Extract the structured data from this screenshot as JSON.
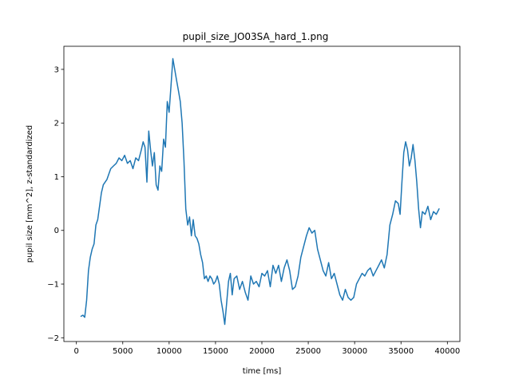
{
  "chart_data": {
    "type": "line",
    "title": "pupil_size_JO03SA_hard_1.png",
    "xlabel": "time [ms]",
    "ylabel": "pupil size [mm^2], z-standardized",
    "xlim": [
      -1350,
      41350
    ],
    "ylim": [
      -2.07,
      3.43
    ],
    "xticks": [
      0,
      5000,
      10000,
      15000,
      20000,
      25000,
      30000,
      35000,
      40000
    ],
    "xtick_labels": [
      "0",
      "5000",
      "10000",
      "15000",
      "20000",
      "25000",
      "30000",
      "35000",
      "40000"
    ],
    "yticks": [
      -2,
      -1,
      0,
      1,
      2,
      3
    ],
    "ytick_labels": [
      "−2",
      "−1",
      "0",
      "1",
      "2",
      "3"
    ],
    "grid": false,
    "series": [
      {
        "color": "#1f77b4",
        "x": [
          500,
          700,
          900,
          1100,
          1300,
          1500,
          1700,
          1900,
          2100,
          2300,
          2500,
          2700,
          2900,
          3100,
          3300,
          3500,
          3700,
          4000,
          4300,
          4600,
          4900,
          5200,
          5500,
          5800,
          6100,
          6400,
          6700,
          7000,
          7200,
          7400,
          7600,
          7800,
          8000,
          8200,
          8400,
          8600,
          8800,
          9000,
          9200,
          9400,
          9600,
          9800,
          10000,
          10200,
          10400,
          10600,
          10800,
          11000,
          11200,
          11400,
          11600,
          11800,
          12000,
          12200,
          12400,
          12600,
          12800,
          13000,
          13200,
          13400,
          13600,
          13800,
          14000,
          14200,
          14400,
          14600,
          14800,
          15000,
          15200,
          15400,
          15600,
          15800,
          16000,
          16200,
          16400,
          16600,
          16800,
          17000,
          17300,
          17600,
          17900,
          18200,
          18500,
          18800,
          19100,
          19400,
          19700,
          20000,
          20300,
          20600,
          20900,
          21200,
          21500,
          21800,
          22100,
          22400,
          22700,
          23000,
          23300,
          23600,
          23900,
          24200,
          24500,
          24800,
          25100,
          25400,
          25700,
          26000,
          26300,
          26600,
          26900,
          27200,
          27500,
          27800,
          28100,
          28400,
          28700,
          29000,
          29300,
          29600,
          29900,
          30200,
          30500,
          30800,
          31100,
          31400,
          31700,
          32000,
          32300,
          32600,
          32900,
          33200,
          33500,
          33800,
          34100,
          34400,
          34700,
          34900,
          35100,
          35300,
          35500,
          35700,
          35900,
          36100,
          36300,
          36500,
          36700,
          36900,
          37100,
          37300,
          37600,
          37900,
          38200,
          38500,
          38800,
          39100
        ],
        "y": [
          -1.6,
          -1.58,
          -1.62,
          -1.3,
          -0.75,
          -0.5,
          -0.35,
          -0.25,
          0.1,
          0.2,
          0.45,
          0.7,
          0.85,
          0.9,
          0.95,
          1.05,
          1.15,
          1.2,
          1.25,
          1.35,
          1.3,
          1.4,
          1.25,
          1.3,
          1.15,
          1.35,
          1.3,
          1.5,
          1.65,
          1.55,
          0.9,
          1.85,
          1.5,
          1.2,
          1.45,
          0.85,
          0.75,
          1.2,
          1.1,
          1.7,
          1.55,
          2.4,
          2.2,
          2.7,
          3.2,
          3.0,
          2.8,
          2.6,
          2.4,
          2.0,
          1.3,
          0.4,
          0.1,
          0.25,
          -0.1,
          0.2,
          -0.1,
          -0.15,
          -0.25,
          -0.45,
          -0.6,
          -0.9,
          -0.85,
          -0.95,
          -0.85,
          -0.9,
          -1.0,
          -0.95,
          -0.85,
          -1.0,
          -1.3,
          -1.5,
          -1.75,
          -1.35,
          -0.95,
          -0.8,
          -1.2,
          -0.9,
          -0.85,
          -1.1,
          -0.95,
          -1.15,
          -1.3,
          -0.85,
          -1.0,
          -0.95,
          -1.05,
          -0.8,
          -0.85,
          -0.75,
          -1.05,
          -0.65,
          -0.8,
          -0.65,
          -0.95,
          -0.7,
          -0.55,
          -0.75,
          -1.1,
          -1.05,
          -0.85,
          -0.5,
          -0.3,
          -0.1,
          0.05,
          -0.05,
          0.0,
          -0.35,
          -0.55,
          -0.75,
          -0.85,
          -0.6,
          -0.9,
          -0.8,
          -1.0,
          -1.2,
          -1.3,
          -1.1,
          -1.25,
          -1.3,
          -1.25,
          -1.0,
          -0.9,
          -0.8,
          -0.85,
          -0.75,
          -0.7,
          -0.85,
          -0.75,
          -0.65,
          -0.55,
          -0.7,
          -0.45,
          0.1,
          0.3,
          0.55,
          0.5,
          0.3,
          0.9,
          1.45,
          1.65,
          1.5,
          1.2,
          1.35,
          1.6,
          1.3,
          0.9,
          0.4,
          0.05,
          0.35,
          0.3,
          0.45,
          0.2,
          0.35,
          0.3,
          0.4
        ]
      }
    ]
  }
}
